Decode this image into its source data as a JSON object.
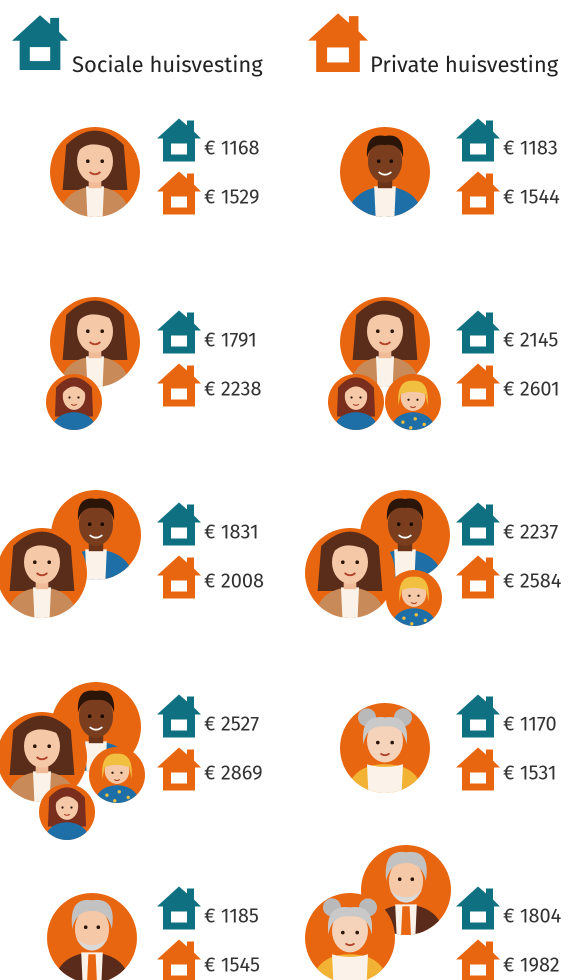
{
  "legend": {
    "social": "Sociale huisvesting",
    "private": "Private huisvesting"
  },
  "households": [
    {
      "social": "€ 1168",
      "private": "€ 1529"
    },
    {
      "social": "€ 1183",
      "private": "€ 1544"
    },
    {
      "social": "€ 1791",
      "private": "€ 2238"
    },
    {
      "social": "€ 2145",
      "private": "€ 2601"
    },
    {
      "social": "€ 1831",
      "private": "€ 2008"
    },
    {
      "social": "€ 2237",
      "private": "€ 2584"
    },
    {
      "social": "€ 2527",
      "private": "€ 2869"
    },
    {
      "social": "€ 1170",
      "private": "€ 1531"
    },
    {
      "social": "€ 1185",
      "private": "€ 1545"
    },
    {
      "social": "€ 1804",
      "private": "€ 1982"
    }
  ]
}
